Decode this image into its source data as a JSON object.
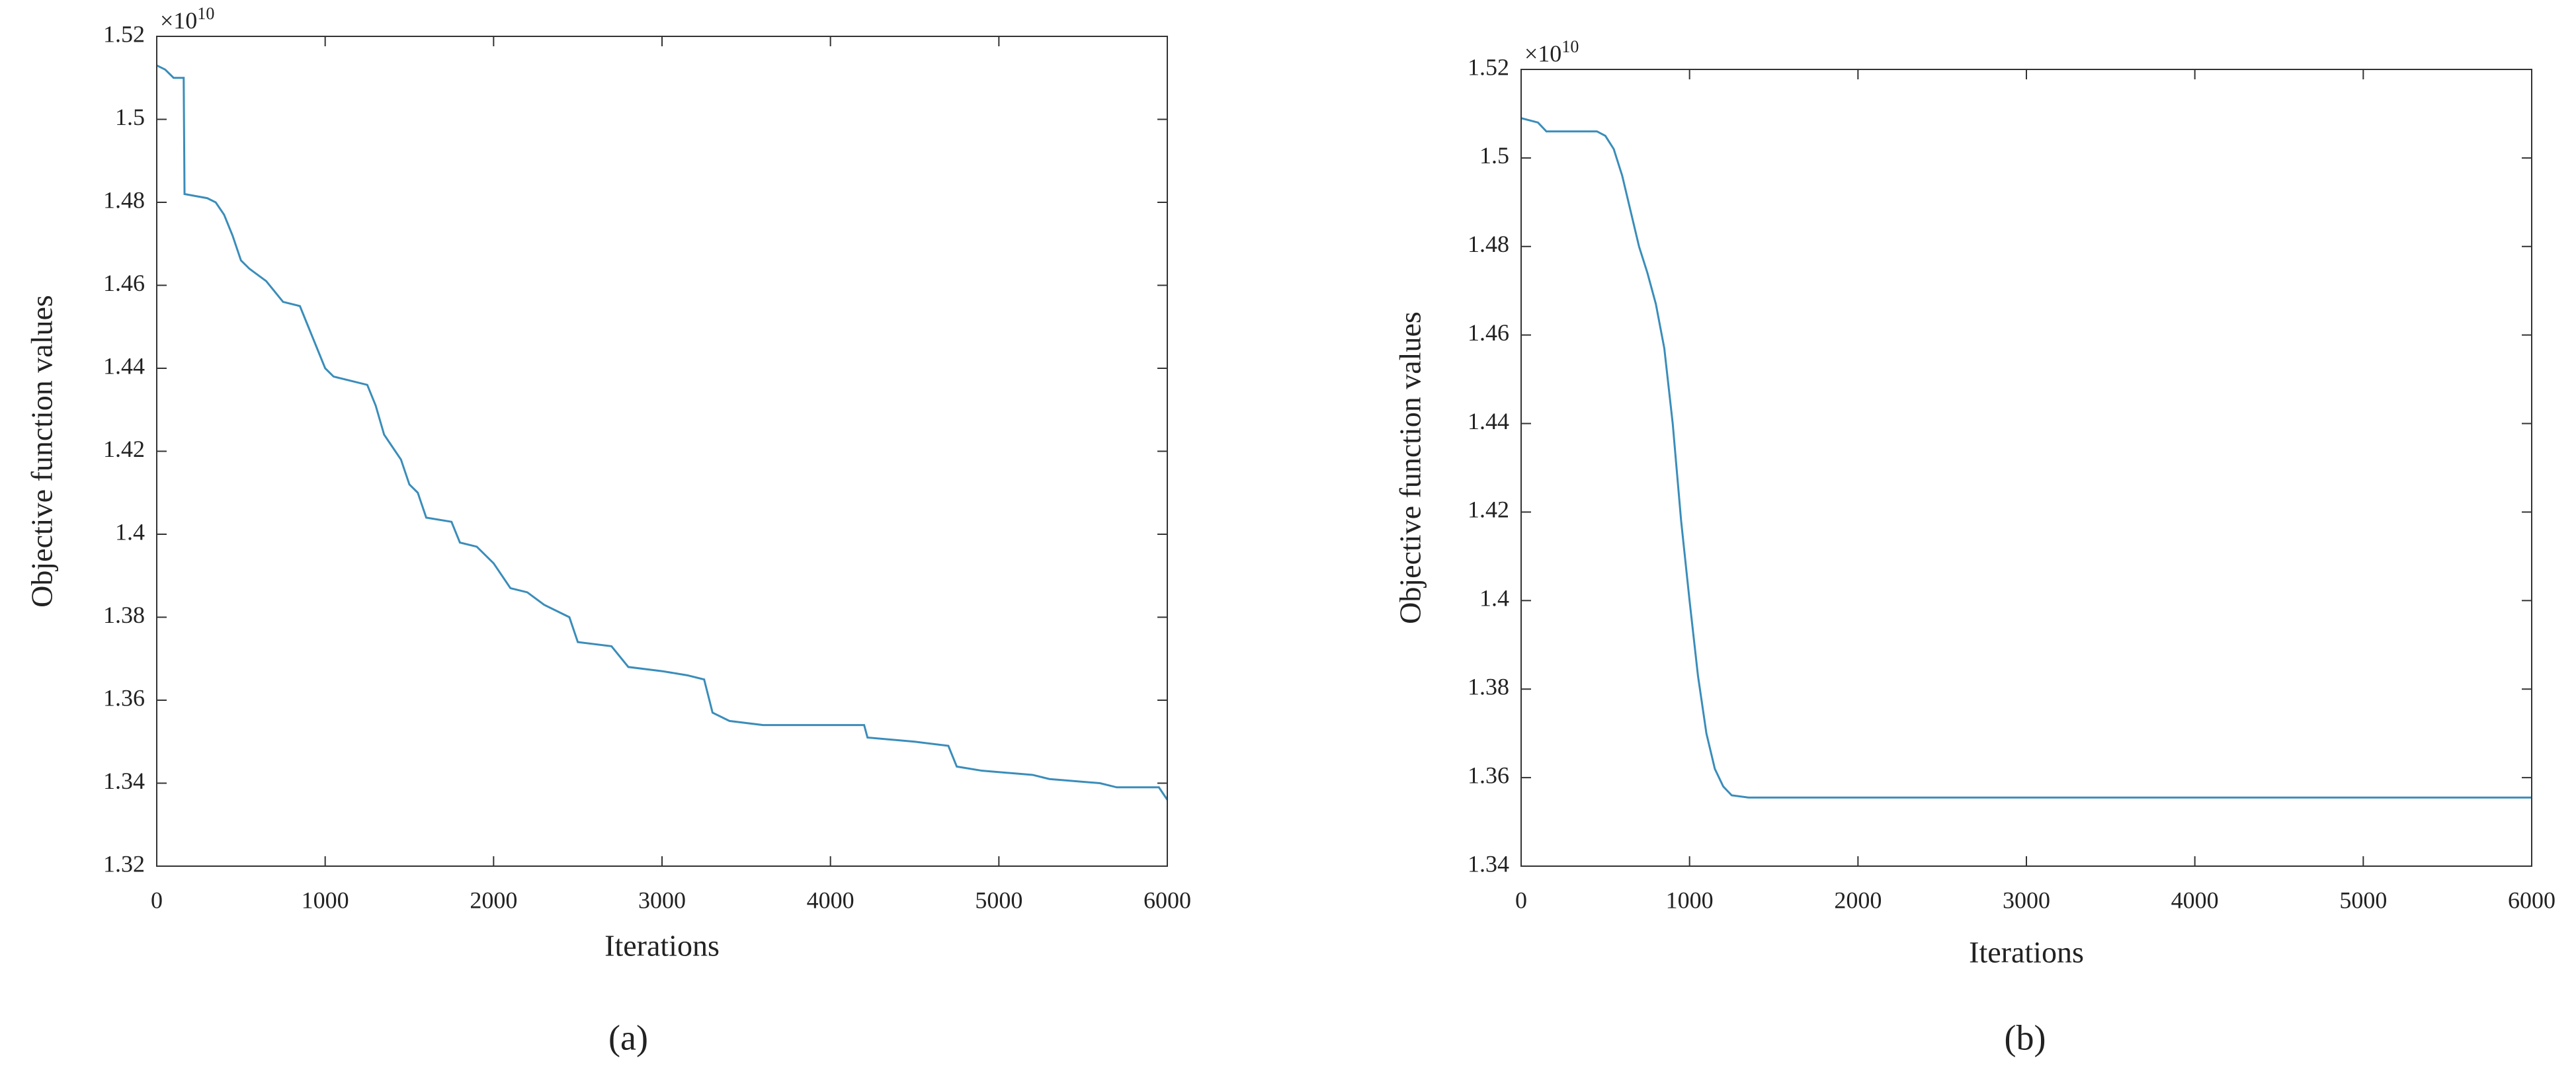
{
  "chart_data": [
    {
      "type": "line",
      "panel_label": "(a)",
      "xlabel": "Iterations",
      "ylabel": "Objective function values",
      "y_scale_base": "×10",
      "y_scale_exponent": "10",
      "xlim": [
        0,
        6000
      ],
      "xticks": [
        0,
        1000,
        2000,
        3000,
        4000,
        5000,
        6000
      ],
      "ylim": [
        1.32,
        1.52
      ],
      "yticks": [
        1.32,
        1.34,
        1.36,
        1.38,
        1.4,
        1.42,
        1.44,
        1.46,
        1.48,
        1.5,
        1.52
      ],
      "x": [
        0,
        50,
        100,
        160,
        165,
        300,
        350,
        400,
        450,
        500,
        550,
        650,
        750,
        850,
        900,
        950,
        1000,
        1050,
        1150,
        1250,
        1300,
        1350,
        1400,
        1450,
        1500,
        1550,
        1600,
        1750,
        1800,
        1900,
        2000,
        2100,
        2200,
        2300,
        2450,
        2500,
        2700,
        2800,
        3000,
        3150,
        3250,
        3300,
        3400,
        3600,
        4200,
        4220,
        4500,
        4700,
        4750,
        4900,
        5200,
        5300,
        5600,
        5700,
        5950,
        6000
      ],
      "series": [
        {
          "color": "#3a8dba",
          "values": [
            1.513,
            1.512,
            1.51,
            1.51,
            1.482,
            1.481,
            1.48,
            1.477,
            1.472,
            1.466,
            1.464,
            1.461,
            1.456,
            1.455,
            1.45,
            1.445,
            1.44,
            1.438,
            1.437,
            1.436,
            1.431,
            1.424,
            1.421,
            1.418,
            1.412,
            1.41,
            1.404,
            1.403,
            1.398,
            1.397,
            1.393,
            1.387,
            1.386,
            1.383,
            1.38,
            1.374,
            1.373,
            1.368,
            1.367,
            1.366,
            1.365,
            1.357,
            1.355,
            1.354,
            1.354,
            1.351,
            1.35,
            1.349,
            1.344,
            1.343,
            1.342,
            1.341,
            1.34,
            1.339,
            1.339,
            1.336
          ]
        }
      ]
    },
    {
      "type": "line",
      "panel_label": "(b)",
      "xlabel": "Iterations",
      "ylabel": "Objective function values",
      "y_scale_base": "×10",
      "y_scale_exponent": "10",
      "xlim": [
        0,
        6000
      ],
      "xticks": [
        0,
        1000,
        2000,
        3000,
        4000,
        5000,
        6000
      ],
      "ylim": [
        1.34,
        1.52
      ],
      "yticks": [
        1.34,
        1.36,
        1.38,
        1.4,
        1.42,
        1.44,
        1.46,
        1.48,
        1.5,
        1.52
      ],
      "x": [
        0,
        100,
        150,
        450,
        500,
        550,
        600,
        650,
        700,
        750,
        800,
        850,
        900,
        950,
        1000,
        1050,
        1100,
        1150,
        1200,
        1250,
        1350,
        6000
      ],
      "series": [
        {
          "color": "#3a8dba",
          "values": [
            1.509,
            1.508,
            1.506,
            1.506,
            1.505,
            1.502,
            1.496,
            1.488,
            1.48,
            1.474,
            1.467,
            1.457,
            1.44,
            1.418,
            1.4,
            1.383,
            1.37,
            1.362,
            1.358,
            1.356,
            1.3555,
            1.3555
          ]
        }
      ]
    }
  ]
}
